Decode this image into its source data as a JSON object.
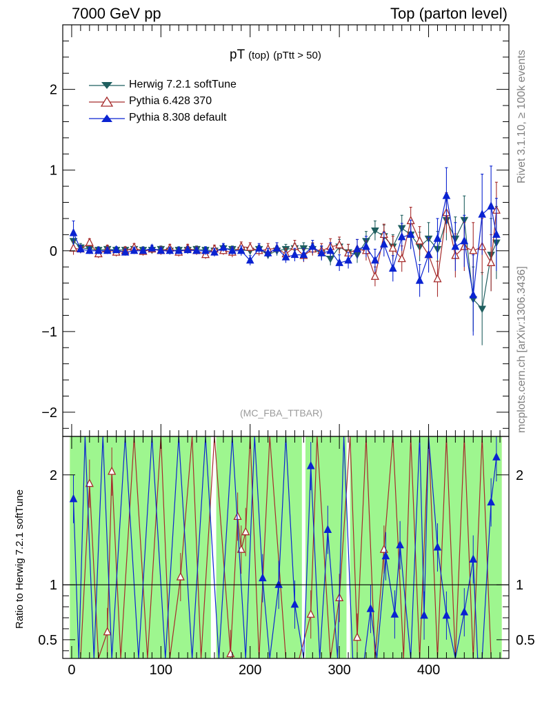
{
  "header": {
    "left": "7000 GeV pp",
    "right": "Top (parton level)"
  },
  "side_labels": {
    "rivet": "Rivet 3.1.10, ≥ 100k events",
    "mcplots": "mcplots.cern.ch [arXiv:1306.3436]"
  },
  "plot_title": {
    "main": "pT",
    "sub1": "(top)",
    "sub2": "(pTtt > 50)"
  },
  "analysis_tag": "(MC_FBA_TTBAR)",
  "ratio_ylabel": "Ratio to Herwig 7.2.1 softTune",
  "colors": {
    "herwig": "#1f5f5f",
    "pythia6": "#a52a2a",
    "pythia8": "#0a23d1",
    "band_inner": "#99f58f",
    "band_outer": "#fbfb8f"
  },
  "chart_data": [
    {
      "type": "line",
      "panel": "main",
      "xlim": [
        -10,
        490
      ],
      "ylim": [
        -2.3,
        2.8
      ],
      "yticks": [
        -2,
        -1,
        0,
        1,
        2
      ],
      "yticklabels": [
        "−2",
        "−1",
        "0",
        "1",
        "2"
      ],
      "legend_position": "top-left",
      "series": [
        {
          "name": "Herwig 7.2.1 softTune",
          "marker": "triangle-down-filled",
          "x": [
            2,
            10,
            20,
            30,
            40,
            50,
            60,
            70,
            80,
            90,
            100,
            110,
            120,
            130,
            140,
            150,
            160,
            170,
            180,
            190,
            200,
            210,
            220,
            230,
            240,
            250,
            260,
            270,
            280,
            290,
            300,
            310,
            320,
            330,
            340,
            350,
            360,
            370,
            380,
            390,
            400,
            410,
            420,
            430,
            440,
            450,
            460,
            470,
            476
          ],
          "y": [
            0.12,
            0.04,
            0.02,
            0.01,
            0.02,
            0.01,
            0.01,
            0.02,
            0.01,
            0.01,
            0.02,
            0.0,
            0.01,
            0.01,
            0.02,
            0.01,
            0.0,
            0.03,
            0.02,
            0.01,
            0.0,
            0.02,
            -0.05,
            0.0,
            0.02,
            0.03,
            0.03,
            0.02,
            -0.03,
            -0.1,
            0.05,
            -0.02,
            -0.05,
            0.12,
            0.25,
            0.18,
            0.05,
            0.28,
            0.2,
            0.05,
            0.15,
            0.02,
            0.38,
            0.15,
            0.38,
            -0.6,
            -0.72,
            -0.05,
            0.1
          ],
          "err": [
            0.1,
            0.05,
            0.04,
            0.04,
            0.04,
            0.04,
            0.04,
            0.04,
            0.04,
            0.04,
            0.04,
            0.04,
            0.04,
            0.04,
            0.04,
            0.04,
            0.04,
            0.04,
            0.04,
            0.05,
            0.05,
            0.05,
            0.05,
            0.06,
            0.06,
            0.06,
            0.07,
            0.07,
            0.08,
            0.08,
            0.09,
            0.1,
            0.1,
            0.12,
            0.12,
            0.14,
            0.15,
            0.16,
            0.17,
            0.18,
            0.2,
            0.22,
            0.25,
            0.27,
            0.3,
            0.4,
            0.45,
            0.45,
            0.45
          ]
        },
        {
          "name": "Pythia 6.428 370",
          "marker": "triangle-up-open",
          "x": [
            2,
            10,
            20,
            30,
            40,
            50,
            60,
            70,
            80,
            90,
            100,
            110,
            120,
            130,
            140,
            150,
            160,
            170,
            180,
            190,
            200,
            210,
            220,
            230,
            240,
            250,
            260,
            270,
            280,
            290,
            300,
            310,
            320,
            330,
            340,
            350,
            360,
            370,
            380,
            390,
            400,
            410,
            420,
            430,
            440,
            450,
            460,
            470,
            476
          ],
          "y": [
            0.03,
            0.02,
            0.1,
            -0.04,
            0.02,
            -0.02,
            0.0,
            0.04,
            -0.01,
            0.02,
            0.0,
            0.03,
            -0.02,
            0.03,
            0.0,
            -0.05,
            0.02,
            0.0,
            -0.02,
            0.05,
            0.04,
            0.0,
            0.02,
            0.03,
            -0.04,
            0.05,
            -0.06,
            0.02,
            0.0,
            0.05,
            0.07,
            -0.03,
            0.02,
            0.0,
            -0.32,
            0.2,
            0.03,
            -0.1,
            0.37,
            0.12,
            -0.05,
            -0.35,
            0.47,
            -0.06,
            0.05,
            0.0,
            0.05,
            -0.15,
            0.5
          ],
          "err": [
            0.08,
            0.05,
            0.05,
            0.05,
            0.05,
            0.05,
            0.05,
            0.05,
            0.05,
            0.05,
            0.05,
            0.05,
            0.05,
            0.05,
            0.05,
            0.05,
            0.05,
            0.05,
            0.06,
            0.06,
            0.06,
            0.06,
            0.07,
            0.07,
            0.07,
            0.08,
            0.08,
            0.08,
            0.09,
            0.1,
            0.1,
            0.11,
            0.12,
            0.12,
            0.12,
            0.13,
            0.15,
            0.16,
            0.17,
            0.18,
            0.2,
            0.22,
            0.25,
            0.27,
            0.3,
            0.35,
            0.35,
            0.35,
            0.35
          ]
        },
        {
          "name": "Pythia 8.308 default",
          "marker": "triangle-up-filled",
          "x": [
            2,
            10,
            20,
            30,
            40,
            50,
            60,
            70,
            80,
            90,
            100,
            110,
            120,
            130,
            140,
            150,
            160,
            170,
            180,
            190,
            200,
            210,
            220,
            230,
            240,
            250,
            260,
            270,
            280,
            290,
            300,
            310,
            320,
            330,
            340,
            350,
            360,
            370,
            380,
            390,
            400,
            410,
            420,
            430,
            440,
            450,
            460,
            470,
            476
          ],
          "y": [
            0.22,
            0.02,
            0.0,
            0.0,
            0.0,
            0.01,
            -0.02,
            0.0,
            0.0,
            0.03,
            0.0,
            0.0,
            0.0,
            0.01,
            0.0,
            0.0,
            -0.02,
            0.04,
            0.0,
            0.0,
            -0.12,
            0.03,
            -0.03,
            0.03,
            -0.08,
            -0.05,
            -0.05,
            0.05,
            -0.03,
            0.0,
            -0.15,
            -0.12,
            0.02,
            0.05,
            -0.12,
            0.08,
            -0.22,
            0.17,
            0.2,
            -0.37,
            -0.05,
            0.15,
            0.68,
            0.05,
            0.12,
            -0.55,
            0.45,
            0.55,
            0.2
          ],
          "err": [
            0.15,
            0.05,
            0.04,
            0.04,
            0.04,
            0.04,
            0.04,
            0.04,
            0.04,
            0.04,
            0.04,
            0.04,
            0.04,
            0.04,
            0.04,
            0.05,
            0.05,
            0.05,
            0.05,
            0.06,
            0.06,
            0.06,
            0.06,
            0.07,
            0.07,
            0.08,
            0.08,
            0.08,
            0.09,
            0.1,
            0.1,
            0.1,
            0.12,
            0.13,
            0.14,
            0.15,
            0.16,
            0.17,
            0.18,
            0.2,
            0.22,
            0.25,
            0.35,
            0.3,
            0.32,
            0.5,
            0.5,
            0.5,
            0.45
          ]
        }
      ]
    },
    {
      "type": "line",
      "panel": "ratio",
      "xlim": [
        -10,
        490
      ],
      "ylim": [
        0.33,
        2.35
      ],
      "xticks": [
        0,
        100,
        200,
        300,
        400
      ],
      "xticklabels": [
        "0",
        "100",
        "200",
        "300",
        "400"
      ],
      "yticks": [
        0.5,
        1,
        2
      ],
      "yticklabels": [
        "0.5",
        "1",
        "2"
      ],
      "reference_line": 1,
      "band_note": "inner band green, outer band yellow (reference uncertainty)",
      "series": [
        {
          "name": "Pythia 6.428 370",
          "marker": "triangle-up-open",
          "x": [
            10,
            20,
            30,
            40,
            45,
            55,
            70,
            85,
            100,
            110,
            122,
            135,
            145,
            160,
            178,
            186,
            190,
            195,
            200,
            210,
            222,
            240,
            255,
            268,
            275,
            290,
            300,
            312,
            320,
            330,
            340,
            350,
            360,
            372,
            380,
            390,
            400,
            410,
            420,
            430,
            440,
            450,
            460,
            470
          ],
          "y": [
            0.3,
            1.92,
            0.3,
            0.57,
            2.03,
            0.3,
            2.6,
            0.3,
            2.6,
            0.3,
            1.07,
            2.6,
            0.3,
            2.6,
            0.37,
            1.62,
            1.32,
            1.48,
            2.6,
            0.3,
            2.6,
            0.3,
            0.3,
            0.73,
            2.6,
            0.3,
            0.88,
            2.6,
            0.52,
            2.6,
            0.3,
            1.32,
            2.6,
            0.3,
            2.6,
            0.3,
            2.6,
            0.3,
            2.6,
            0.3,
            2.6,
            0.3,
            2.6,
            0.3
          ]
        },
        {
          "name": "Pythia 8.308 default",
          "marker": "triangle-up-filled",
          "x": [
            2,
            8,
            15,
            25,
            35,
            45,
            60,
            75,
            90,
            105,
            120,
            135,
            150,
            165,
            180,
            195,
            205,
            214,
            222,
            232,
            240,
            250,
            260,
            268,
            278,
            287,
            298,
            305,
            315,
            328,
            335,
            342,
            352,
            362,
            368,
            380,
            390,
            395,
            400,
            410,
            420,
            430,
            440,
            450,
            455,
            460,
            470,
            476
          ],
          "y": [
            1.78,
            0.3,
            2.6,
            0.3,
            2.6,
            0.3,
            2.6,
            0.3,
            2.6,
            0.3,
            2.6,
            0.3,
            2.6,
            0.3,
            2.6,
            0.3,
            2.6,
            1.06,
            0.3,
            1.0,
            2.6,
            0.82,
            0.3,
            2.08,
            0.3,
            1.5,
            0.3,
            2.6,
            0.3,
            0.3,
            0.78,
            0.3,
            1.26,
            0.73,
            1.36,
            0.3,
            2.6,
            0.72,
            2.6,
            1.34,
            0.72,
            0.3,
            0.75,
            1.23,
            0.3,
            0.3,
            1.75,
            2.16
          ]
        }
      ]
    }
  ]
}
